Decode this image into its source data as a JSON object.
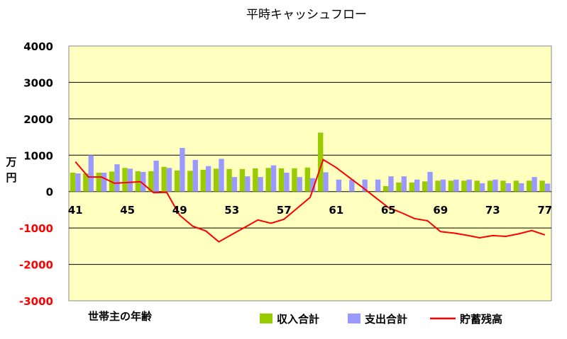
{
  "chart_data": {
    "type": "bar",
    "title": "平時キャッシュフロー",
    "xlabel": "世帯主の年齢",
    "ylabel": "万円",
    "ylim": [
      -3000,
      4000
    ],
    "yticks": [
      4000,
      3000,
      2000,
      1000,
      0,
      -1000,
      -2000,
      -3000
    ],
    "x": [
      41,
      42,
      43,
      44,
      45,
      46,
      47,
      48,
      49,
      50,
      51,
      52,
      53,
      54,
      55,
      56,
      57,
      58,
      59,
      60,
      61,
      62,
      63,
      64,
      65,
      66,
      67,
      68,
      69,
      70,
      71,
      72,
      73,
      74,
      75,
      76,
      77
    ],
    "x_tick_labels": [
      "41",
      "45",
      "49",
      "53",
      "57",
      "61",
      "65",
      "69",
      "73",
      "77"
    ],
    "grid": true,
    "legend_position": "bottom-right",
    "colors": {
      "plot_background": "#ffffc0",
      "income": "#99cc00",
      "expense": "#9999ff",
      "savings": "#ff0000",
      "negative_tick": "#ff0000",
      "positive_tick": "#000000"
    },
    "series": [
      {
        "name": "収入合計",
        "kind": "bar",
        "values": [
          520,
          500,
          520,
          550,
          650,
          560,
          560,
          680,
          580,
          570,
          600,
          630,
          620,
          620,
          640,
          650,
          640,
          640,
          660,
          1620,
          0,
          0,
          0,
          0,
          150,
          250,
          250,
          280,
          300,
          300,
          300,
          300,
          300,
          300,
          300,
          300,
          300
        ]
      },
      {
        "name": "支出合計",
        "kind": "bar",
        "values": [
          500,
          1000,
          520,
          750,
          630,
          540,
          850,
          650,
          1200,
          870,
          700,
          900,
          400,
          420,
          400,
          720,
          520,
          400,
          370,
          530,
          330,
          330,
          330,
          330,
          420,
          420,
          330,
          540,
          330,
          330,
          330,
          230,
          330,
          230,
          230,
          400,
          220
        ]
      },
      {
        "name": "貯蓄残高",
        "kind": "line",
        "values": [
          820,
          400,
          400,
          230,
          250,
          270,
          -30,
          -20,
          -650,
          -950,
          -1080,
          -1380,
          -1180,
          -980,
          -780,
          -870,
          -760,
          -460,
          -160,
          880,
          660,
          390,
          120,
          -160,
          -440,
          -580,
          -740,
          -800,
          -1100,
          -1140,
          -1200,
          -1270,
          -1210,
          -1230,
          -1160,
          -1070,
          -1190
        ]
      }
    ]
  }
}
